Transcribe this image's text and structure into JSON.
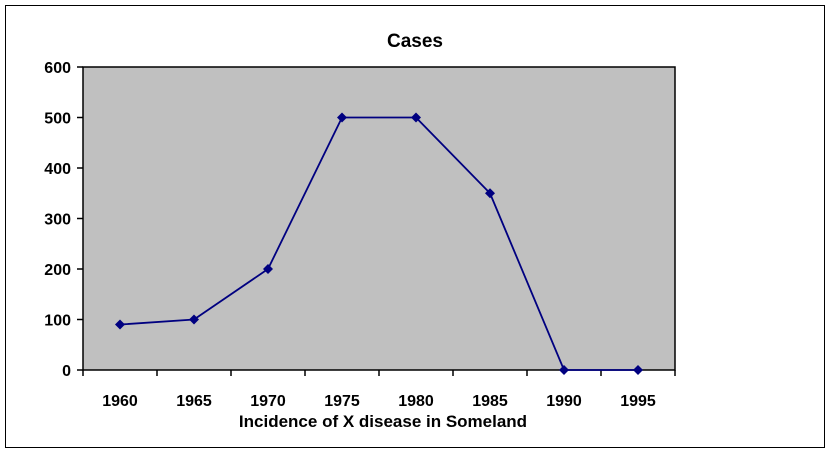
{
  "chart_data": {
    "type": "line",
    "title": "Cases",
    "xlabel": "Incidence of X disease in Someland",
    "ylabel": "",
    "categories": [
      "1960",
      "1965",
      "1970",
      "1975",
      "1980",
      "1985",
      "1990",
      "1995"
    ],
    "series": [
      {
        "values": [
          90,
          100,
          200,
          500,
          500,
          350,
          0,
          0
        ]
      }
    ],
    "ylim": [
      0,
      600
    ],
    "yticks": [
      "0",
      "100",
      "200",
      "300",
      "400",
      "500",
      "600"
    ],
    "grid": false,
    "legend": "none",
    "colors": {
      "plot_background": "#c0c0c0",
      "line": "#000080",
      "marker": "#000080"
    }
  }
}
